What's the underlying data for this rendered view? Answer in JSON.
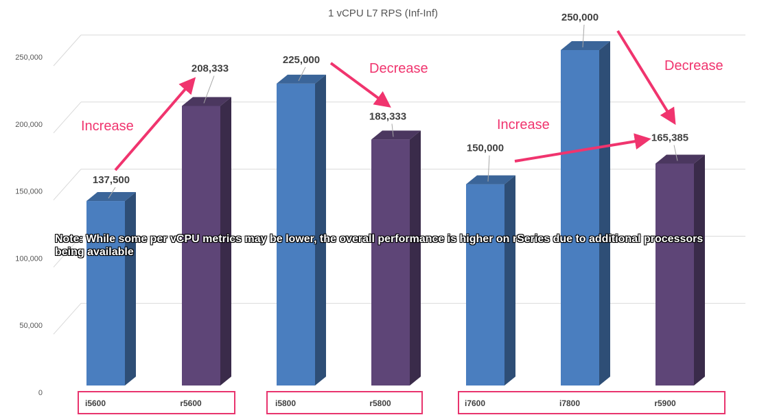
{
  "chart_data": {
    "type": "bar",
    "title": "1 vCPU L7 RPS (Inf-Inf)",
    "categories": [
      "i5600",
      "r5600",
      "i5800",
      "r5800",
      "i7600",
      "i7800",
      "r5900"
    ],
    "values": [
      137500,
      208333,
      225000,
      183333,
      150000,
      250000,
      165385
    ],
    "data_labels": [
      "137,500",
      "208,333",
      "225,000",
      "183,333",
      "150,000",
      "250,000",
      "165,385"
    ],
    "bar_families": [
      "i",
      "r",
      "i",
      "r",
      "i",
      "i",
      "r"
    ],
    "groups": [
      [
        "i5600",
        "r5600"
      ],
      [
        "i5800",
        "r5800"
      ],
      [
        "i7600",
        "i7800",
        "r5900"
      ]
    ],
    "ylim": [
      0,
      250000
    ],
    "yticks": [
      0,
      50000,
      100000,
      150000,
      200000,
      250000
    ],
    "ytick_labels": [
      "0",
      "50,000",
      "100,000",
      "150,000",
      "200,000",
      "250,000"
    ],
    "xlabel": "",
    "ylabel": "",
    "grid": true,
    "style": "3d-column",
    "annotations": [
      {
        "text": "Increase",
        "from": "i5600",
        "to": "r5600"
      },
      {
        "text": "Decrease",
        "from": "i5800",
        "to": "r5800"
      },
      {
        "text": "Increase",
        "from": "i7600",
        "to": "r5900"
      },
      {
        "text": "Decrease",
        "from": "i7800",
        "to": "r5900"
      }
    ]
  },
  "note": "Note: While some per vCPU metrics may be lower, the overall performance is higher on rSeries due to additional processors being available",
  "colors": {
    "i_series": "#4a7ebf",
    "r_series": "#5e4577",
    "annotation": "#f0346e",
    "group_box": "#e8336d",
    "gridline": "#d9d9d9"
  }
}
